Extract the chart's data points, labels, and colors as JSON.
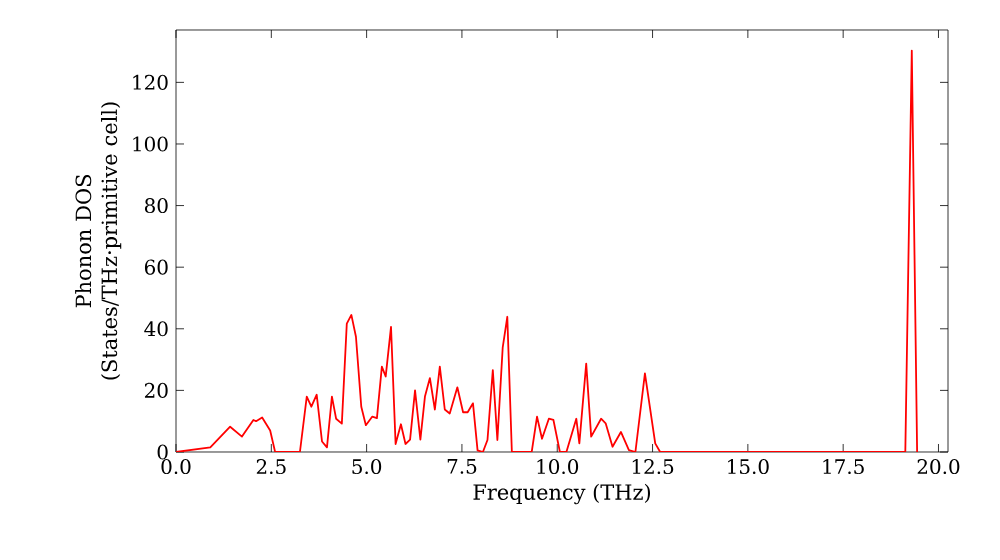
{
  "chart_data": {
    "type": "line",
    "xlabel": "Frequency (THz)",
    "ylabel": "Phonon DOS (States/THz·primitive cell)",
    "xlim": [
      0,
      20.25
    ],
    "ylim": [
      0,
      137
    ],
    "xticks": [
      {
        "value": 0,
        "label": "0.0"
      },
      {
        "value": 2.5,
        "label": "2.5"
      },
      {
        "value": 5,
        "label": "5.0"
      },
      {
        "value": 7.5,
        "label": "7.5"
      },
      {
        "value": 10,
        "label": "10.0"
      },
      {
        "value": 12.5,
        "label": "12.5"
      },
      {
        "value": 15,
        "label": "15.0"
      },
      {
        "value": 17.5,
        "label": "17.5"
      },
      {
        "value": 20,
        "label": "20.0"
      }
    ],
    "yticks": [
      0,
      20,
      40,
      60,
      80,
      100,
      120
    ],
    "marker": "none",
    "line_style": "solid",
    "series": [
      {
        "color": "#ff0000",
        "x": [
          0,
          0.9,
          1.42,
          1.73,
          2.03,
          2.1,
          2.26,
          2.47,
          2.6,
          3.25,
          3.43,
          3.55,
          3.69,
          3.83,
          3.96,
          4.09,
          4.2,
          4.35,
          4.48,
          4.6,
          4.72,
          4.86,
          4.98,
          5.15,
          5.27,
          5.4,
          5.5,
          5.64,
          5.76,
          5.9,
          6.02,
          6.14,
          6.27,
          6.41,
          6.53,
          6.66,
          6.79,
          6.92,
          7.05,
          7.18,
          7.38,
          7.53,
          7.65,
          7.79,
          7.91,
          8.05,
          8.17,
          8.31,
          8.43,
          8.57,
          8.69,
          8.81,
          9.33,
          9.47,
          9.6,
          9.78,
          9.9,
          10.07,
          10.24,
          10.5,
          10.58,
          10.76,
          10.89,
          11.15,
          11.27,
          11.45,
          11.67,
          11.88,
          12.05,
          12.3,
          12.57,
          12.7,
          19.13,
          19.3,
          19.44
        ],
        "values": [
          0,
          1.5,
          8.2,
          5,
          10.4,
          10,
          11.2,
          7,
          0,
          0,
          18,
          14.7,
          18.6,
          3.4,
          1.5,
          18,
          10.8,
          9.2,
          41.7,
          44.5,
          37.4,
          14.7,
          8.7,
          11.5,
          11,
          27.7,
          24.5,
          40.6,
          2.6,
          9,
          2.6,
          4,
          20,
          4,
          18,
          24,
          13.8,
          27.7,
          13.8,
          12.5,
          21,
          12.9,
          12.9,
          15.8,
          0.5,
          0,
          3.9,
          26.6,
          3.9,
          34,
          43.9,
          0,
          0,
          11.5,
          4.3,
          10.8,
          10.4,
          0,
          0,
          10.8,
          2.8,
          28.7,
          5,
          10.8,
          9.3,
          1.7,
          6.5,
          0.6,
          0,
          25.5,
          2.8,
          0,
          0,
          130.3,
          0
        ]
      }
    ]
  }
}
